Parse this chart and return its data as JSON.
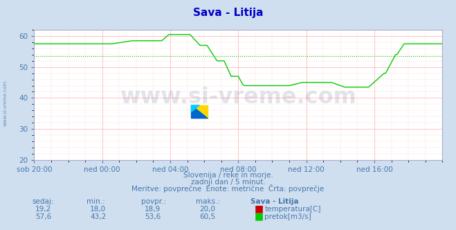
{
  "title": "Sava - Litija",
  "title_color": "#0000cc",
  "bg_color": "#d0dff0",
  "plot_bg_color": "#ffffff",
  "grid_color_major": "#ffaaaa",
  "grid_color_minor": "#ffdddd",
  "watermark_text": "www.si-vreme.com",
  "watermark_color": "#1a3a6a",
  "watermark_alpha": 0.13,
  "temp_color": "#cc0000",
  "flow_color": "#00cc00",
  "avg_temp": 18.9,
  "avg_flow": 53.6,
  "ymin": 20,
  "ymax": 62,
  "yticks": [
    20,
    30,
    40,
    50,
    60
  ],
  "xtick_labels": [
    "sob 20:00",
    "ned 00:00",
    "ned 04:00",
    "ned 08:00",
    "ned 12:00",
    "ned 16:00"
  ],
  "subtitle1": "Slovenija / reke in morje.",
  "subtitle2": "zadnji dan / 5 minut.",
  "subtitle3": "Meritve: povprečne  Enote: metrične  Črta: povprečje",
  "info_color": "#4477aa",
  "legend_title": "Sava - Litija",
  "temp_sedaj": "19,2",
  "temp_min": "18,0",
  "temp_povpr": "18,9",
  "temp_maks": "20,0",
  "flow_sedaj": "57,6",
  "flow_min": "43,2",
  "flow_povpr": "53,6",
  "flow_maks": "60,5",
  "sidebar_text": "www.si-vreme.com",
  "sidebar_color": "#4477aa"
}
